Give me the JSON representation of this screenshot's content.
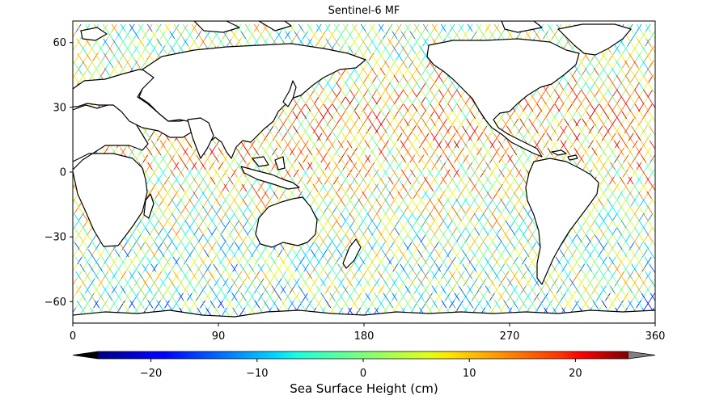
{
  "map": {
    "title": "Sentinel-6 MF",
    "projection": "plate-carree",
    "x_ticks": [
      {
        "value": 0,
        "label": "0"
      },
      {
        "value": 90,
        "label": "90"
      },
      {
        "value": 180,
        "label": "180"
      },
      {
        "value": 270,
        "label": "270"
      },
      {
        "value": 360,
        "label": "360"
      }
    ],
    "y_ticks": [
      {
        "value": 60,
        "label": "60"
      },
      {
        "value": 30,
        "label": "30"
      },
      {
        "value": 0,
        "label": "0"
      },
      {
        "value": -30,
        "label": "−30"
      },
      {
        "value": -60,
        "label": "−60"
      }
    ],
    "lon_range": [
      0,
      360
    ],
    "lat_range": [
      -70,
      70
    ],
    "land_color": "#ffffff",
    "coastline_color": "#000000",
    "grid": false
  },
  "colorbar": {
    "label": "Sea Surface Height (cm)",
    "colormap": "jet",
    "range": [
      -25,
      25
    ],
    "extend": "both",
    "under_color": "#000000",
    "over_color": "#808080",
    "ticks": [
      {
        "value": -20,
        "label": "−20"
      },
      {
        "value": -10,
        "label": "−10"
      },
      {
        "value": 0,
        "label": "0"
      },
      {
        "value": 10,
        "label": "10"
      },
      {
        "value": 20,
        "label": "20"
      }
    ]
  }
}
